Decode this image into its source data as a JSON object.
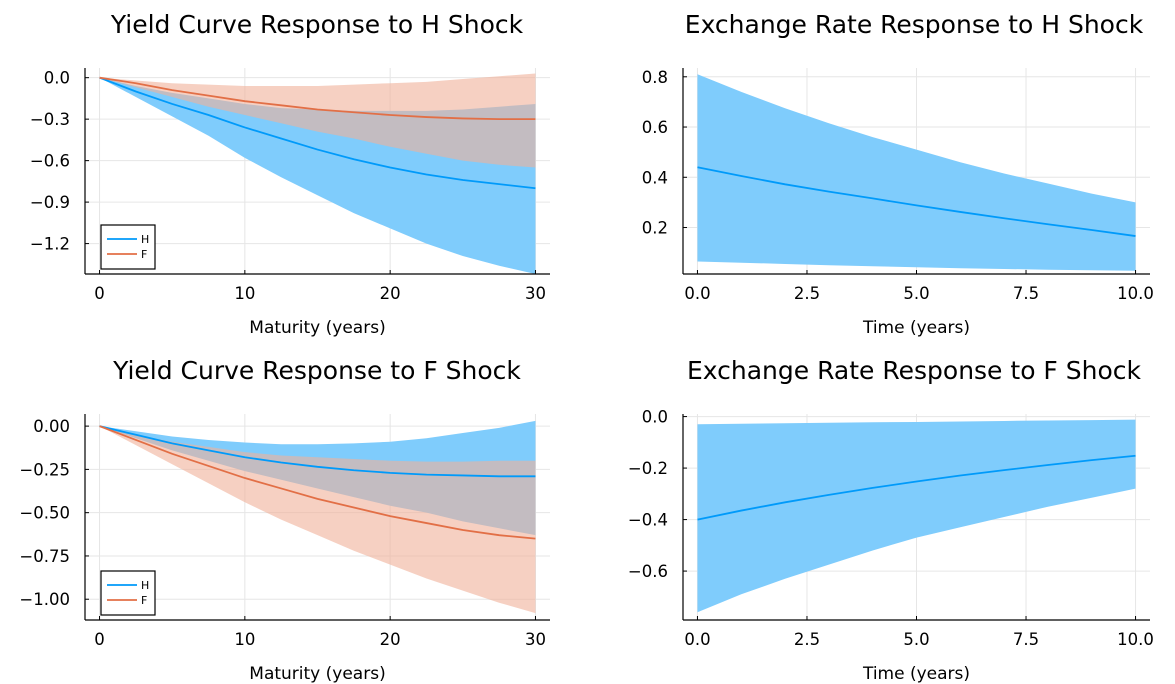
{
  "chart_data": [
    {
      "type": "line",
      "title": "Yield Curve Response to H Shock",
      "xlabel": "Maturity (years)",
      "ylabel": "",
      "xlim": [
        -1,
        31
      ],
      "ylim": [
        -1.42,
        0.07
      ],
      "xticks": [
        0,
        10,
        20,
        30
      ],
      "xtick_labels": [
        "0",
        "10",
        "20",
        "30"
      ],
      "yticks": [
        0.0,
        -0.3,
        -0.6,
        -0.9,
        -1.2
      ],
      "ytick_labels": [
        "0.0",
        "−0.3",
        "−0.6",
        "−0.9",
        "−1.2"
      ],
      "grid": true,
      "legend": "bottom-left",
      "x": [
        0,
        2.5,
        5,
        7.5,
        10,
        12.5,
        15,
        17.5,
        20,
        22.5,
        25,
        27.5,
        30
      ],
      "series": [
        {
          "name": "H",
          "color": "#009AFA",
          "band_color": "#7FCCFC",
          "values": [
            0,
            -0.1,
            -0.19,
            -0.27,
            -0.36,
            -0.44,
            -0.52,
            -0.59,
            -0.65,
            -0.7,
            -0.74,
            -0.77,
            -0.8
          ],
          "upper": [
            0,
            -0.06,
            -0.11,
            -0.15,
            -0.19,
            -0.22,
            -0.23,
            -0.24,
            -0.24,
            -0.24,
            -0.23,
            -0.21,
            -0.19
          ],
          "lower": [
            0,
            -0.14,
            -0.28,
            -0.42,
            -0.58,
            -0.72,
            -0.85,
            -0.98,
            -1.09,
            -1.2,
            -1.29,
            -1.36,
            -1.42
          ]
        },
        {
          "name": "F",
          "color": "#E26F46",
          "band_color": "#F0B19A",
          "values": [
            0,
            -0.04,
            -0.09,
            -0.13,
            -0.17,
            -0.2,
            -0.23,
            -0.25,
            -0.27,
            -0.285,
            -0.295,
            -0.3,
            -0.3
          ],
          "upper": [
            0,
            -0.02,
            -0.04,
            -0.05,
            -0.06,
            -0.06,
            -0.06,
            -0.05,
            -0.04,
            -0.03,
            -0.01,
            0.01,
            0.03
          ],
          "lower": [
            0,
            -0.07,
            -0.14,
            -0.21,
            -0.27,
            -0.33,
            -0.39,
            -0.44,
            -0.5,
            -0.55,
            -0.6,
            -0.63,
            -0.65
          ]
        }
      ]
    },
    {
      "type": "line",
      "title": "Exchange Rate Response to H Shock",
      "xlabel": "Time (years)",
      "ylabel": "",
      "xlim": [
        -0.33,
        10.33
      ],
      "ylim": [
        0.015,
        0.835
      ],
      "xticks": [
        0,
        2.5,
        5,
        7.5,
        10
      ],
      "xtick_labels": [
        "0.0",
        "2.5",
        "5.0",
        "7.5",
        "10.0"
      ],
      "yticks": [
        0.2,
        0.4,
        0.6,
        0.8
      ],
      "ytick_labels": [
        "0.2",
        "0.4",
        "0.6",
        "0.8"
      ],
      "grid": true,
      "legend": "none",
      "x": [
        0,
        1,
        2,
        3,
        4,
        5,
        6,
        7,
        8,
        9,
        10
      ],
      "series": [
        {
          "color": "#009AFA",
          "band_color": "#7FCCFC",
          "values": [
            0.44,
            0.405,
            0.372,
            0.343,
            0.316,
            0.288,
            0.262,
            0.237,
            0.213,
            0.19,
            0.166
          ],
          "upper": [
            0.81,
            0.74,
            0.675,
            0.615,
            0.56,
            0.51,
            0.46,
            0.415,
            0.375,
            0.335,
            0.3
          ],
          "lower": [
            0.065,
            0.06,
            0.055,
            0.05,
            0.046,
            0.042,
            0.038,
            0.035,
            0.032,
            0.03,
            0.028
          ]
        }
      ]
    },
    {
      "type": "line",
      "title": "Yield Curve Response to F Shock",
      "xlabel": "Maturity (years)",
      "ylabel": "",
      "xlim": [
        -1,
        31
      ],
      "ylim": [
        -1.12,
        0.07
      ],
      "xticks": [
        0,
        10,
        20,
        30
      ],
      "xtick_labels": [
        "0",
        "10",
        "20",
        "30"
      ],
      "yticks": [
        0.0,
        -0.25,
        -0.5,
        -0.75,
        -1.0
      ],
      "ytick_labels": [
        "0.00",
        "−0.25",
        "−0.50",
        "−0.75",
        "−1.00"
      ],
      "grid": true,
      "legend": "bottom-left",
      "x": [
        0,
        2.5,
        5,
        7.5,
        10,
        12.5,
        15,
        17.5,
        20,
        22.5,
        25,
        27.5,
        30
      ],
      "series": [
        {
          "name": "H",
          "color": "#009AFA",
          "band_color": "#7FCCFC",
          "values": [
            0,
            -0.05,
            -0.1,
            -0.14,
            -0.18,
            -0.21,
            -0.235,
            -0.255,
            -0.27,
            -0.28,
            -0.285,
            -0.29,
            -0.29
          ],
          "upper": [
            0,
            -0.03,
            -0.06,
            -0.08,
            -0.095,
            -0.105,
            -0.105,
            -0.1,
            -0.09,
            -0.07,
            -0.04,
            -0.01,
            0.03
          ],
          "lower": [
            0,
            -0.07,
            -0.14,
            -0.2,
            -0.26,
            -0.31,
            -0.36,
            -0.41,
            -0.46,
            -0.5,
            -0.55,
            -0.59,
            -0.63
          ]
        },
        {
          "name": "F",
          "color": "#E26F46",
          "band_color": "#F0B19A",
          "values": [
            0,
            -0.08,
            -0.16,
            -0.23,
            -0.3,
            -0.36,
            -0.42,
            -0.47,
            -0.52,
            -0.56,
            -0.6,
            -0.63,
            -0.65
          ],
          "upper": [
            0,
            -0.05,
            -0.09,
            -0.12,
            -0.15,
            -0.17,
            -0.18,
            -0.19,
            -0.2,
            -0.205,
            -0.205,
            -0.2,
            -0.2
          ],
          "lower": [
            0,
            -0.11,
            -0.22,
            -0.33,
            -0.44,
            -0.54,
            -0.63,
            -0.72,
            -0.8,
            -0.88,
            -0.95,
            -1.02,
            -1.08
          ]
        }
      ]
    },
    {
      "type": "line",
      "title": "Exchange Rate Response to F Shock",
      "xlabel": "Time (years)",
      "ylabel": "",
      "xlim": [
        -0.33,
        10.33
      ],
      "ylim": [
        -0.79,
        0.01
      ],
      "xticks": [
        0,
        2.5,
        5,
        7.5,
        10
      ],
      "xtick_labels": [
        "0.0",
        "2.5",
        "5.0",
        "7.5",
        "10.0"
      ],
      "yticks": [
        0.0,
        -0.2,
        -0.4,
        -0.6
      ],
      "ytick_labels": [
        "0.0",
        "−0.2",
        "−0.4",
        "−0.6"
      ],
      "grid": true,
      "legend": "none",
      "x": [
        0,
        1,
        2,
        3,
        4,
        5,
        6,
        7,
        8,
        9,
        10
      ],
      "series": [
        {
          "color": "#009AFA",
          "band_color": "#7FCCFC",
          "values": [
            -0.4,
            -0.365,
            -0.333,
            -0.304,
            -0.277,
            -0.252,
            -0.229,
            -0.208,
            -0.188,
            -0.169,
            -0.152
          ],
          "upper": [
            -0.03,
            -0.028,
            -0.026,
            -0.024,
            -0.022,
            -0.021,
            -0.019,
            -0.017,
            -0.015,
            -0.014,
            -0.012
          ],
          "lower": [
            -0.76,
            -0.69,
            -0.63,
            -0.575,
            -0.52,
            -0.47,
            -0.43,
            -0.39,
            -0.35,
            -0.315,
            -0.28
          ]
        }
      ]
    }
  ]
}
